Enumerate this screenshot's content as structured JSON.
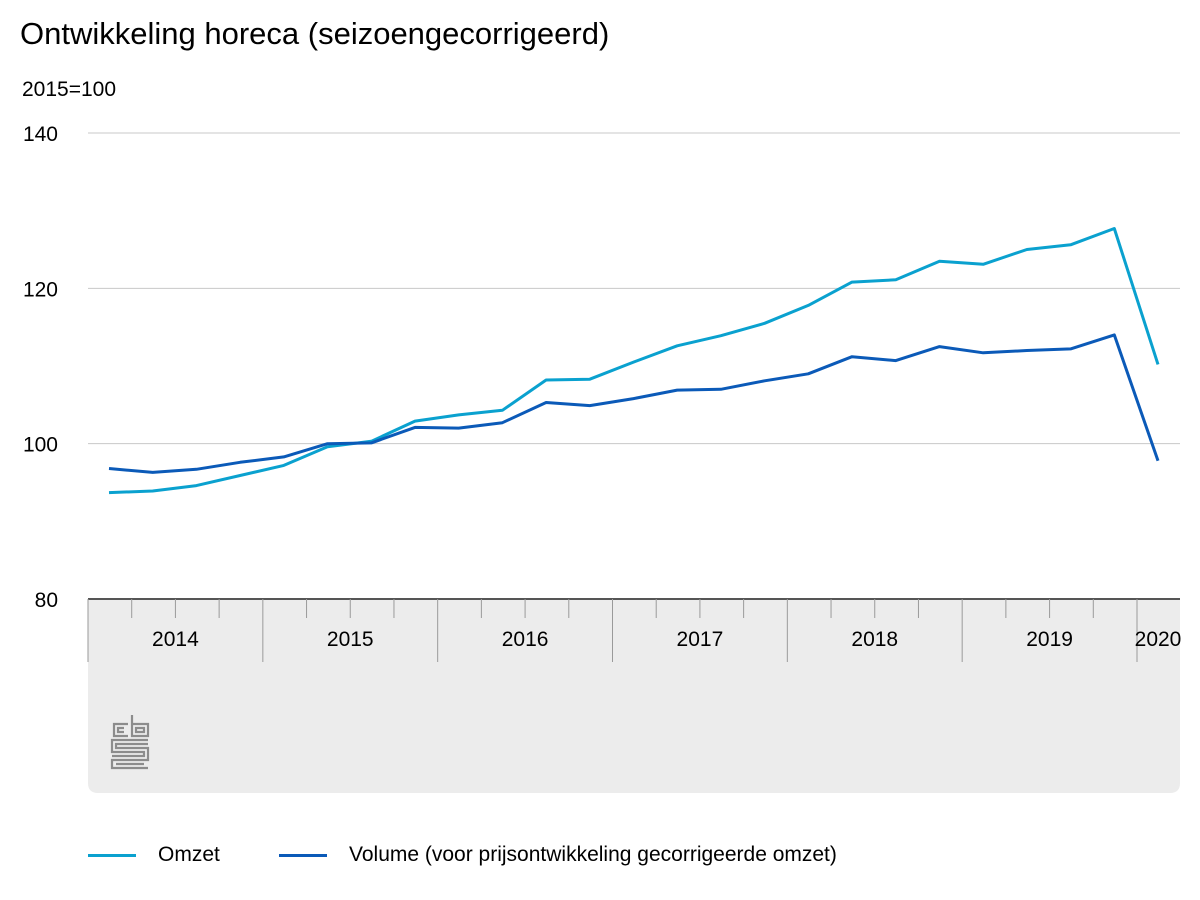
{
  "title": "Ontwikkeling horeca (seizoengecorrigeerd)",
  "unit_label": "2015=100",
  "logo_text": "cbs",
  "colors": {
    "omzet": "#0aa1cf",
    "volume": "#0b5ab8",
    "grid": "#c8c8c8",
    "axis_band": "#ececec",
    "axis_line": "#555555",
    "logo": "#8c8c8c"
  },
  "chart_data": {
    "type": "line",
    "title": "Ontwikkeling horeca (seizoengecorrigeerd)",
    "ylabel": "2015=100",
    "ylim": [
      80,
      140
    ],
    "yticks": [
      80,
      100,
      120,
      140
    ],
    "grid": true,
    "legend_position": "bottom",
    "x": [
      "2014 Q1",
      "2014 Q2",
      "2014 Q3",
      "2014 Q4",
      "2015 Q1",
      "2015 Q2",
      "2015 Q3",
      "2015 Q4",
      "2016 Q1",
      "2016 Q2",
      "2016 Q3",
      "2016 Q4",
      "2017 Q1",
      "2017 Q2",
      "2017 Q3",
      "2017 Q4",
      "2018 Q1",
      "2018 Q2",
      "2018 Q3",
      "2018 Q4",
      "2019 Q1",
      "2019 Q2",
      "2019 Q3",
      "2019 Q4",
      "2020 Q1"
    ],
    "year_labels": [
      "2014",
      "2015",
      "2016",
      "2017",
      "2018",
      "2019",
      "2020"
    ],
    "series": [
      {
        "name": "Omzet",
        "color": "#0aa1cf",
        "values": [
          93.7,
          93.9,
          94.6,
          95.9,
          97.2,
          99.6,
          100.3,
          102.9,
          103.7,
          104.3,
          108.2,
          108.3,
          110.5,
          112.6,
          113.9,
          115.5,
          117.8,
          120.8,
          121.1,
          123.5,
          123.1,
          125.0,
          125.6,
          127.7,
          110.2
        ]
      },
      {
        "name": "Volume (voor prijsontwikkeling gecorrigeerde omzet)",
        "color": "#0b5ab8",
        "values": [
          96.8,
          96.3,
          96.7,
          97.6,
          98.3,
          100.0,
          100.1,
          102.1,
          102.0,
          102.7,
          105.3,
          104.9,
          105.8,
          106.9,
          107.0,
          108.1,
          109.0,
          111.2,
          110.7,
          112.5,
          111.7,
          112.0,
          112.2,
          114.0,
          97.8
        ]
      }
    ]
  }
}
